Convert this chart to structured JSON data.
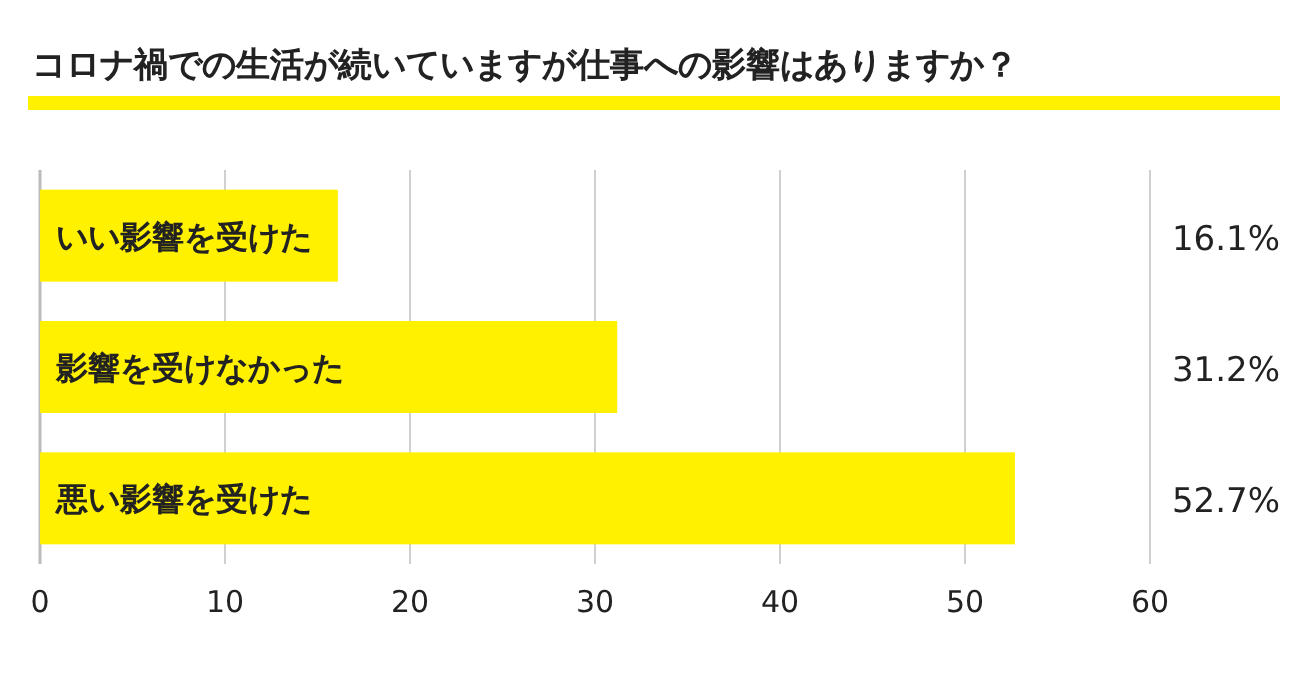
{
  "chart_data": {
    "type": "bar",
    "orientation": "horizontal",
    "title": "コロナ禍での生活が続いていますが仕事への影響はありますか？",
    "categories": [
      "いい影響を受けた",
      "影響を受けなかった",
      "悪い影響を受けた"
    ],
    "values": [
      16.1,
      31.2,
      52.7
    ],
    "value_labels": [
      "16.1%",
      "31.2%",
      "52.7%"
    ],
    "color": "#fff100",
    "xlim": [
      0,
      60
    ],
    "xticks": [
      0,
      10,
      20,
      30,
      40,
      50,
      60
    ],
    "grid": "x"
  }
}
